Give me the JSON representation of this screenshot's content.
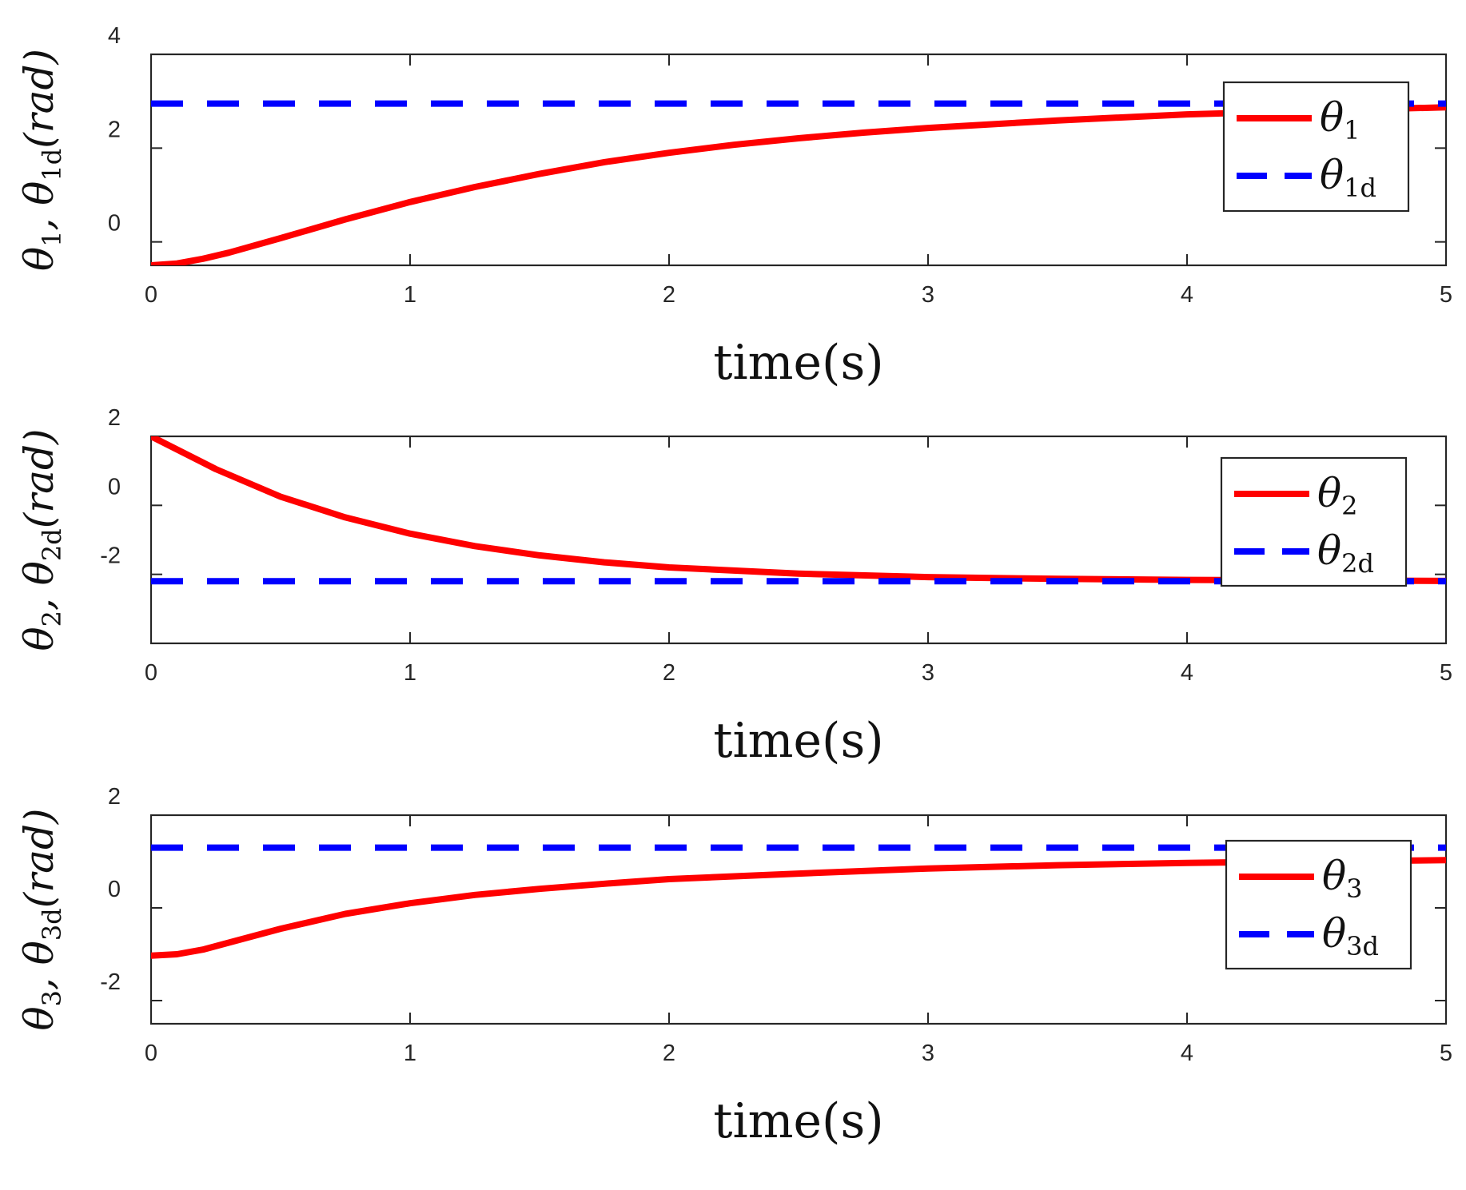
{
  "chart_data": [
    {
      "type": "line",
      "xlabel": "time(s)",
      "ylabel": "θ1, θ1d(rad)",
      "ylabel_parts": {
        "a": "θ",
        "a_sub": "1",
        "sep": ", ",
        "b": "θ",
        "b_sub": "1d",
        "unit": "(rad)"
      },
      "xlim": [
        0,
        5
      ],
      "ylim": [
        -0.5,
        4
      ],
      "xticks": [
        "0",
        "1",
        "2",
        "3",
        "4",
        "5"
      ],
      "yticks": [
        {
          "v": 0,
          "label": "0"
        },
        {
          "v": 2,
          "label": "2"
        },
        {
          "v": 4,
          "label": "4"
        }
      ],
      "legend_position": "top-right",
      "series": [
        {
          "name": "θ1",
          "name_base": "θ",
          "name_sub": "1",
          "style": "solid",
          "color": "#ff0000",
          "x": [
            0,
            0.1,
            0.2,
            0.3,
            0.5,
            0.75,
            1.0,
            1.25,
            1.5,
            1.75,
            2.0,
            2.25,
            2.5,
            2.75,
            3.0,
            3.5,
            4.0,
            4.5,
            5.0
          ],
          "y": [
            -0.5,
            -0.46,
            -0.36,
            -0.23,
            0.08,
            0.48,
            0.85,
            1.17,
            1.45,
            1.7,
            1.9,
            2.07,
            2.21,
            2.33,
            2.43,
            2.59,
            2.72,
            2.8,
            2.87
          ]
        },
        {
          "name": "θ1d",
          "name_base": "θ",
          "name_sub": "1d",
          "style": "dashed",
          "color": "#0000ff",
          "x": [
            0,
            5
          ],
          "y": [
            2.95,
            2.95
          ]
        }
      ]
    },
    {
      "type": "line",
      "xlabel": "time(s)",
      "ylabel": "θ2, θ2d(rad)",
      "ylabel_parts": {
        "a": "θ",
        "a_sub": "2",
        "sep": ", ",
        "b": "θ",
        "b_sub": "2d",
        "unit": "(rad)"
      },
      "xlim": [
        0,
        5
      ],
      "ylim": [
        -4,
        2
      ],
      "xticks": [
        "0",
        "1",
        "2",
        "3",
        "4",
        "5"
      ],
      "yticks": [
        {
          "v": -2,
          "label": "-2"
        },
        {
          "v": 0,
          "label": "0"
        },
        {
          "v": 2,
          "label": "2"
        }
      ],
      "legend_position": "top-right",
      "series": [
        {
          "name": "θ2",
          "name_base": "θ",
          "name_sub": "2",
          "style": "solid",
          "color": "#ff0000",
          "x": [
            0,
            0.25,
            0.5,
            0.75,
            1.0,
            1.25,
            1.5,
            1.75,
            2.0,
            2.5,
            3.0,
            3.5,
            4.0,
            4.5,
            5.0
          ],
          "y": [
            2.0,
            1.05,
            0.25,
            -0.35,
            -0.82,
            -1.18,
            -1.45,
            -1.65,
            -1.8,
            -1.98,
            -2.08,
            -2.13,
            -2.16,
            -2.18,
            -2.19
          ]
        },
        {
          "name": "θ2d",
          "name_base": "θ",
          "name_sub": "2d",
          "style": "dashed",
          "color": "#0000ff",
          "x": [
            0,
            5
          ],
          "y": [
            -2.2,
            -2.2
          ]
        }
      ]
    },
    {
      "type": "line",
      "xlabel": "time(s)",
      "ylabel": "θ3, θ3d(rad)",
      "ylabel_parts": {
        "a": "θ",
        "a_sub": "3",
        "sep": ", ",
        "b": "θ",
        "b_sub": "3d",
        "unit": "(rad)"
      },
      "xlim": [
        0,
        5
      ],
      "ylim": [
        -2.5,
        2
      ],
      "xticks": [
        "0",
        "1",
        "2",
        "3",
        "4",
        "5"
      ],
      "yticks": [
        {
          "v": -2,
          "label": "-2"
        },
        {
          "v": 0,
          "label": "0"
        },
        {
          "v": 2,
          "label": "2"
        }
      ],
      "legend_position": "top-right",
      "series": [
        {
          "name": "θ3",
          "name_base": "θ",
          "name_sub": "3",
          "style": "solid",
          "color": "#ff0000",
          "x": [
            0,
            0.1,
            0.2,
            0.3,
            0.5,
            0.75,
            1.0,
            1.25,
            1.5,
            1.75,
            2.0,
            2.5,
            3.0,
            3.5,
            4.0,
            4.5,
            5.0
          ],
          "y": [
            -1.03,
            -1.0,
            -0.9,
            -0.75,
            -0.45,
            -0.13,
            0.1,
            0.28,
            0.41,
            0.52,
            0.62,
            0.74,
            0.85,
            0.92,
            0.97,
            1.0,
            1.03
          ]
        },
        {
          "name": "θ3d",
          "name_base": "θ",
          "name_sub": "3d",
          "style": "dashed",
          "color": "#0000ff",
          "x": [
            0,
            5
          ],
          "y": [
            1.3,
            1.3
          ]
        }
      ]
    }
  ]
}
